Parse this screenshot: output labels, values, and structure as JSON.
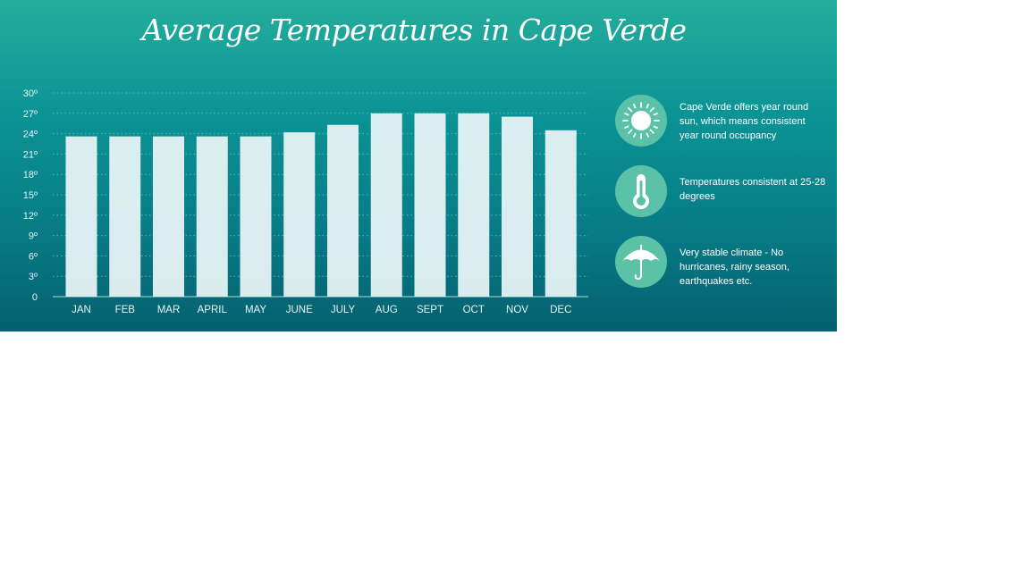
{
  "chart_data": {
    "type": "bar",
    "title": "Average Temperatures in Cape Verde",
    "categories": [
      "JAN",
      "FEB",
      "MAR",
      "APRIL",
      "MAY",
      "JUNE",
      "JULY",
      "AUG",
      "SEPT",
      "OCT",
      "NOV",
      "DEC"
    ],
    "values": [
      23.6,
      23.6,
      23.6,
      23.6,
      23.6,
      24.2,
      25.3,
      27,
      27,
      27,
      26.5,
      24.5
    ],
    "yticks": [
      "0",
      "3º",
      "6º",
      "9º",
      "12º",
      "15º",
      "18º",
      "21º",
      "24º",
      "27º",
      "30º"
    ],
    "ylim": [
      0,
      30
    ],
    "grid": true,
    "bar_color": "#e6f2f4"
  },
  "features": [
    {
      "icon": "sun-icon",
      "text": "Cape Verde offers year round sun, which means consistent year round occupancy"
    },
    {
      "icon": "thermometer-icon",
      "text": "Temperatures consistent at 25-28 degrees"
    },
    {
      "icon": "umbrella-icon",
      "text": "Very stable climate - No hurricanes, rainy season, earthquakes etc."
    }
  ],
  "colors": {
    "background_top": "#24ad9b",
    "background_bottom": "#05606f",
    "icon_circle": "#5cc2a7"
  }
}
